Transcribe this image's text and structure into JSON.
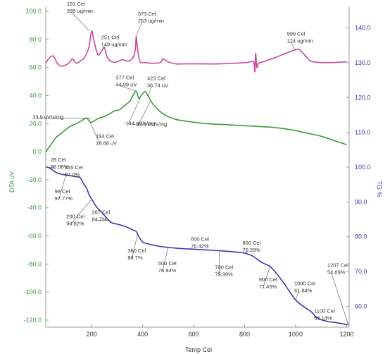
{
  "chart_data": {
    "type": "line",
    "title": "",
    "xlabel": "Temp Cel",
    "ylabel_left": "DTA uV",
    "ylabel_right": "TG %",
    "xlim": [
      20,
      1210
    ],
    "ylim_left": [
      -125,
      103
    ],
    "ylim_right": [
      54,
      146
    ],
    "x_ticks": [
      "200",
      "400",
      "600",
      "800",
      "1000",
      "1200"
    ],
    "x_tick_values": [
      200,
      400,
      600,
      800,
      1000,
      1200
    ],
    "y_left_ticks": [
      "100.0",
      "80.0",
      "60.0",
      "40.0",
      "20.0",
      "0.0",
      "-20.0",
      "-40.0",
      "-60.0",
      "-80.0",
      "-100.0",
      "-120.0"
    ],
    "y_left_tick_values": [
      100,
      80,
      60,
      40,
      20,
      0,
      -20,
      -40,
      -60,
      -80,
      -100,
      -120
    ],
    "y_right_ticks": [
      "140.0",
      "130.0",
      "120.0",
      "110.0",
      "100.0",
      "90.0",
      "80.0",
      "70.0",
      "60.0"
    ],
    "y_right_tick_values": [
      140,
      130,
      120,
      110,
      100,
      90,
      80,
      70,
      60
    ],
    "grid": false,
    "colors": {
      "dtg": "#c8489a",
      "dta": "#3d9a3d",
      "tg": "#3a3ab0",
      "text": "#333333"
    },
    "series": [
      {
        "axis": "left",
        "color": "#c8489a",
        "x": [
          20,
          35,
          50,
          65,
          80,
          95,
          110,
          125,
          140,
          160,
          175,
          190,
          200,
          210,
          225,
          240,
          250,
          262,
          280,
          300,
          320,
          340,
          355,
          365,
          372,
          375,
          380,
          390,
          410,
          430,
          450,
          470,
          480,
          500,
          530,
          560,
          600,
          650,
          700,
          760,
          810,
          835,
          840,
          843,
          848,
          855,
          880,
          920,
          960,
          990,
          1010,
          1025,
          1040,
          1060,
          1100,
          1150,
          1200
        ],
        "y": [
          63,
          67,
          68,
          63,
          61,
          61.5,
          63,
          66,
          63,
          65,
          68,
          75,
          86,
          78,
          69,
          72,
          74,
          67,
          64,
          64,
          65.5,
          64.5,
          65.5,
          68,
          74,
          82,
          73,
          64,
          63.5,
          63,
          63,
          63.5,
          66,
          64,
          62.5,
          62.5,
          62.5,
          62.5,
          62.5,
          63,
          63.5,
          64,
          57,
          70,
          60,
          63,
          64.5,
          67,
          70,
          72,
          73,
          71,
          68,
          64.5,
          63.5,
          63.5,
          64
        ]
      },
      {
        "axis": "left",
        "color": "#3d9a3d",
        "x": [
          20,
          40,
          60,
          80,
          100,
          120,
          140,
          160,
          180,
          195,
          210,
          230,
          250,
          270,
          290,
          310,
          330,
          350,
          365,
          375,
          385,
          395,
          410,
          420,
          440,
          460,
          480,
          500,
          530,
          560,
          600,
          650,
          700,
          750,
          800,
          850,
          900,
          950,
          1000,
          1050,
          1100,
          1150,
          1200
        ],
        "y": [
          0,
          5,
          10,
          13,
          16,
          18.5,
          20,
          22,
          24,
          21,
          22,
          24,
          25,
          27,
          29,
          30,
          33,
          36,
          41,
          43,
          38,
          40,
          43,
          40,
          34,
          30,
          27,
          25,
          23,
          22,
          21,
          20,
          19.5,
          19,
          18.5,
          18,
          17.5,
          16.5,
          15,
          13,
          11,
          8,
          5
        ]
      },
      {
        "axis": "right",
        "color": "#3a3ab0",
        "x": [
          20,
          28,
          40,
          60,
          80,
          99,
          120,
          140,
          155,
          170,
          180,
          190,
          200,
          220,
          240,
          267,
          280,
          300,
          330,
          360,
          375,
          380,
          400,
          430,
          460,
          500,
          550,
          600,
          650,
          700,
          750,
          800,
          830,
          850,
          870,
          900,
          930,
          960,
          1000,
          1030,
          1060,
          1080,
          1100,
          1130,
          1160,
          1207
        ],
        "y": [
          100,
          99.98,
          99.5,
          98.5,
          98,
          97.77,
          97.5,
          97.2,
          97,
          95,
          94,
          92,
          90.82,
          88.5,
          87,
          84.7,
          84,
          83.6,
          83,
          82,
          81.5,
          80.7,
          78.5,
          77.8,
          77.3,
          76.94,
          76.6,
          76.42,
          76.2,
          75.99,
          75.7,
          75.28,
          74.5,
          73.5,
          72.5,
          71.45,
          69,
          66,
          61.84,
          60,
          58.5,
          57,
          56.14,
          55.6,
          55.3,
          54.69
        ]
      }
    ],
    "annotations": [
      {
        "lines": [
          "191 Cel",
          "269 ug/min"
        ],
        "x": 191,
        "y": 86,
        "axis": "left",
        "dx": -32,
        "dy": -46,
        "anchor": "start"
      },
      {
        "lines": [
          "251 Cel",
          "149 ug/min"
        ],
        "x": 251,
        "y": 74,
        "axis": "left",
        "dx": -5,
        "dy": -22,
        "anchor": "start"
      },
      {
        "lines": [
          "373 Cel",
          "253 ug/min"
        ],
        "x": 373,
        "y": 82,
        "axis": "left",
        "dx": 3,
        "dy": -40,
        "anchor": "start"
      },
      {
        "lines": [
          "999 Cel",
          "124 ug/min"
        ],
        "x": 999,
        "y": 72,
        "axis": "left",
        "dx": -12,
        "dy": -31,
        "anchor": "start"
      },
      {
        "lines": [
          "377 Cel",
          "44.09 uV"
        ],
        "x": 377,
        "y": 43,
        "axis": "left",
        "dx": -30,
        "dy": -27,
        "anchor": "start"
      },
      {
        "lines": [
          "423 Cel",
          "36.74 uV"
        ],
        "x": 423,
        "y": 40,
        "axis": "left",
        "dx": -2,
        "dy": -32,
        "anchor": "start"
      },
      {
        "lines": [
          "33.9 uV/s/mg"
        ],
        "x": 200,
        "y": 24,
        "axis": "left",
        "dx": -84,
        "dy": -9,
        "anchor": "start"
      },
      {
        "lines": [
          "194 Cel",
          "18.68 uV"
        ],
        "x": 194,
        "y": 21,
        "axis": "left",
        "dx": 8,
        "dy": 12,
        "anchor": "start"
      },
      {
        "lines": [
          "-144 uV/s/mg"
        ],
        "x": 390,
        "y": 38,
        "axis": "left",
        "dx": -23,
        "dy": 28,
        "anchor": "start"
      },
      {
        "lines": [
          "-30.4 uV/s/mg"
        ],
        "x": 430,
        "y": 36,
        "axis": "left",
        "dx": -23,
        "dy": 25,
        "anchor": "start"
      },
      {
        "lines": [
          "28 Cel",
          "99.98%"
        ],
        "x": 28,
        "y": 99.98,
        "axis": "right",
        "dx": 4,
        "dy": -18,
        "anchor": "start"
      },
      {
        "lines": [
          "99 Cel",
          "97.77%"
        ],
        "x": 99,
        "y": 97.77,
        "axis": "right",
        "dx": -16,
        "dy": 16,
        "anchor": "start"
      },
      {
        "lines": [
          "155 Cel",
          "97.0%"
        ],
        "x": 155,
        "y": 97,
        "axis": "right",
        "dx": -22,
        "dy": -22,
        "anchor": "start"
      },
      {
        "lines": [
          "200 Cel",
          "90.82%"
        ],
        "x": 200,
        "y": 90.82,
        "axis": "right",
        "dx": -36,
        "dy": 17,
        "anchor": "start"
      },
      {
        "lines": [
          "267 Cel",
          "84.7%"
        ],
        "x": 267,
        "y": 84.7,
        "axis": "right",
        "dx": -24,
        "dy": -19,
        "anchor": "start"
      },
      {
        "lines": [
          "380 Cel",
          "80.7%"
        ],
        "x": 380,
        "y": 80.7,
        "axis": "right",
        "dx": -14,
        "dy": 16,
        "anchor": "start"
      },
      {
        "lines": [
          "500 Cel",
          "76.94%"
        ],
        "x": 500,
        "y": 76.94,
        "axis": "right",
        "dx": -14,
        "dy": 15,
        "anchor": "start"
      },
      {
        "lines": [
          "600 Cel",
          "76.42%"
        ],
        "x": 600,
        "y": 76.42,
        "axis": "right",
        "dx": -4,
        "dy": -22,
        "anchor": "start"
      },
      {
        "lines": [
          "700 Cel",
          "75.99%"
        ],
        "x": 700,
        "y": 75.99,
        "axis": "right",
        "dx": -6,
        "dy": 16,
        "anchor": "start"
      },
      {
        "lines": [
          "800 Cel",
          "75.28%"
        ],
        "x": 800,
        "y": 75.28,
        "axis": "right",
        "dx": -3,
        "dy": -22,
        "anchor": "start"
      },
      {
        "lines": [
          "900 Cel",
          "71.45%"
        ],
        "x": 900,
        "y": 71.45,
        "axis": "right",
        "dx": -16,
        "dy": 11,
        "anchor": "start"
      },
      {
        "lines": [
          "1000 Cel",
          "61.84%"
        ],
        "x": 1000,
        "y": 61.84,
        "axis": "right",
        "dx": -2,
        "dy": -31,
        "anchor": "start"
      },
      {
        "lines": [
          "1100 Cel",
          "56.14%"
        ],
        "x": 1100,
        "y": 56.14,
        "axis": "right",
        "dx": -10,
        "dy": -20,
        "anchor": "start"
      },
      {
        "lines": [
          "1207 Cel",
          "54.69%"
        ],
        "x": 1207,
        "y": 54.69,
        "axis": "right",
        "dx": -30,
        "dy": -92,
        "anchor": "start"
      }
    ]
  }
}
